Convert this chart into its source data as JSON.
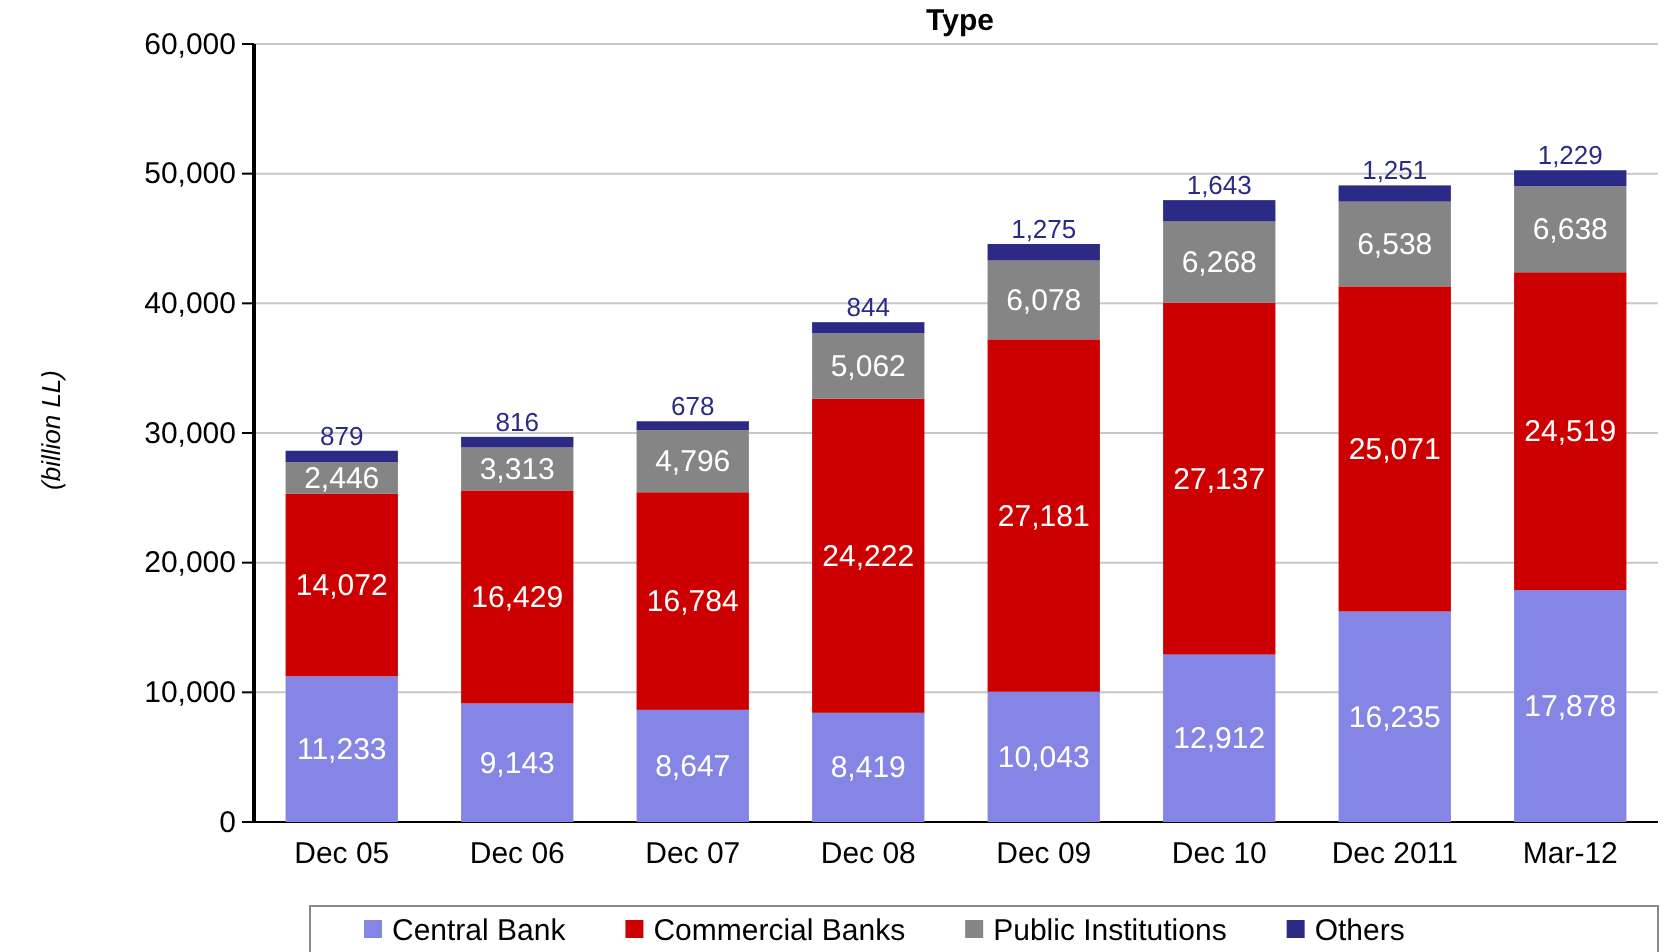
{
  "chart_data": {
    "type": "bar",
    "title": "Type",
    "ylabel": "(billion LL)",
    "stacked": true,
    "grid": "y",
    "legend": "bottom",
    "categories": [
      "Dec 05",
      "Dec 06",
      "Dec 07",
      "Dec 08",
      "Dec 09",
      "Dec 10",
      "Dec 2011",
      "Mar-12"
    ],
    "ylim": [
      0,
      60000
    ],
    "yticks": [
      {
        "value": 0,
        "label": "0"
      },
      {
        "value": 10000,
        "label": "10,000"
      },
      {
        "value": 20000,
        "label": "20,000"
      },
      {
        "value": 30000,
        "label": "30,000"
      },
      {
        "value": 40000,
        "label": "40,000"
      },
      {
        "value": 50000,
        "label": "50,000"
      },
      {
        "value": 60000,
        "label": "60,000"
      }
    ],
    "series": [
      {
        "name": "Central Bank",
        "color": "#8585e6",
        "values": [
          11233,
          9143,
          8647,
          8419,
          10043,
          12912,
          16235,
          17878
        ],
        "value_labels": [
          "11,233",
          "9,143",
          "8,647",
          "8,419",
          "10,043",
          "12,912",
          "16,235",
          "17,878"
        ]
      },
      {
        "name": "Commercial Banks",
        "color": "#cc0000",
        "values": [
          14072,
          16429,
          16784,
          24222,
          27181,
          27137,
          25071,
          24519
        ],
        "value_labels": [
          "14,072",
          "16,429",
          "16,784",
          "24,222",
          "27,181",
          "27,137",
          "25,071",
          "24,519"
        ]
      },
      {
        "name": "Public Institutions",
        "color": "#858585",
        "values": [
          2446,
          3313,
          4796,
          5062,
          6078,
          6268,
          6538,
          6638
        ],
        "value_labels": [
          "2,446",
          "3,313",
          "4,796",
          "5,062",
          "6,078",
          "6,268",
          "6,538",
          "6,638"
        ]
      },
      {
        "name": "Others",
        "color": "#2b2b85",
        "values": [
          879,
          816,
          678,
          844,
          1275,
          1643,
          1251,
          1229
        ],
        "value_labels": [
          "879",
          "816",
          "678",
          "844",
          "1,275",
          "1,643",
          "1,251",
          "1,229"
        ]
      }
    ]
  }
}
